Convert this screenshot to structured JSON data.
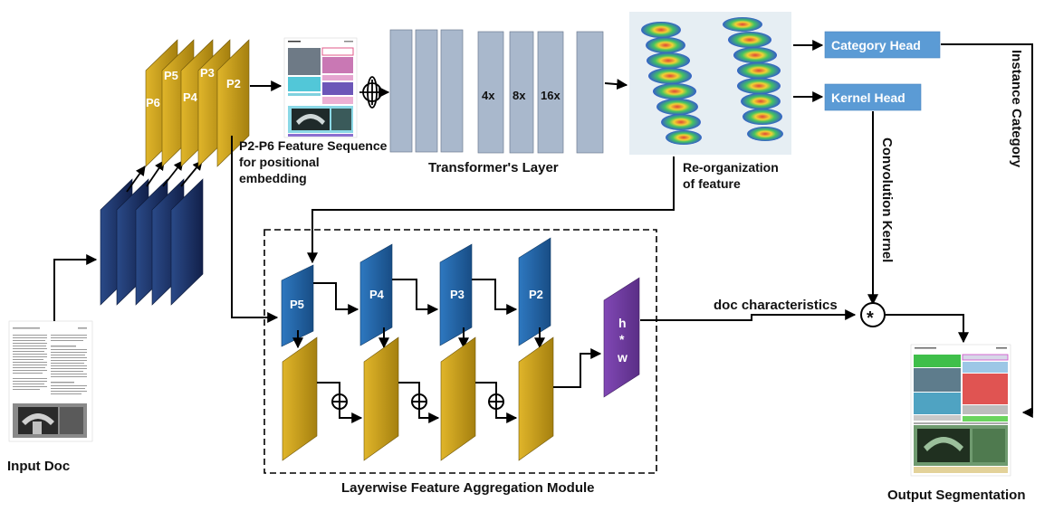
{
  "input": {
    "label": "Input Doc"
  },
  "backbone": {
    "levels": [
      "P6",
      "P5",
      "P4",
      "P3",
      "P2"
    ],
    "caption_line1": "P2-P6 Feature Sequence",
    "caption_line2": "for positional",
    "caption_line3": "embedding"
  },
  "transformer": {
    "label": "Transformer's Layer",
    "scale_4x": "4x",
    "scale_8x": "8x",
    "scale_16x": "16x"
  },
  "reorg": {
    "label_line1": "Re-organization",
    "label_line2": "of feature"
  },
  "heads": {
    "category": "Category Head",
    "kernel": "Kernel Head"
  },
  "side_labels": {
    "instance_category": "Instance Category",
    "convolution_kernel": "Convolution Kernel"
  },
  "lfam": {
    "label": "Layerwise Feature Aggregation Module",
    "p5": "P5",
    "p4": "P4",
    "p3": "P3",
    "p2": "P2",
    "hw_h": "h",
    "hw_star": "*",
    "hw_w": "w"
  },
  "fusion": {
    "doc_characteristics": "doc characteristics",
    "conv_symbol": "*"
  },
  "output": {
    "label": "Output Segmentation"
  },
  "colors": {
    "gold": "#c89d18",
    "navy": "#1a2d5e",
    "blue": "#1f5e9e",
    "head": "#5b9bd5",
    "purple": "#6f3d9c",
    "transformer": "#a9b8cc"
  }
}
